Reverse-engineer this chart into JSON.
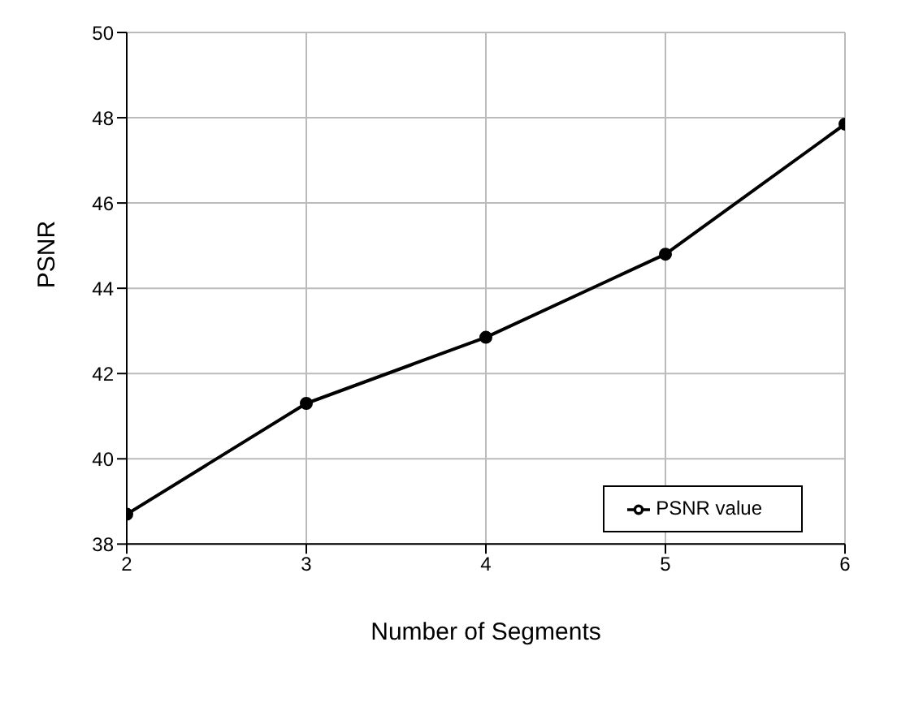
{
  "chart_data": {
    "type": "line",
    "xlabel": "Number of Segments",
    "ylabel": "PSNR",
    "x": [
      2,
      3,
      4,
      5,
      6
    ],
    "series": [
      {
        "name": "PSNR value",
        "color": "#000000",
        "values": [
          38.7,
          41.3,
          42.85,
          44.8,
          47.85
        ]
      }
    ],
    "xlim": [
      2,
      6
    ],
    "xticks": [
      2,
      3,
      4,
      5,
      6
    ],
    "ylim": [
      38,
      50
    ],
    "yticks": [
      38,
      40,
      42,
      44,
      46,
      48,
      50
    ],
    "grid": true,
    "legend": "bottom right",
    "marker": "circle",
    "line_style": "solid"
  }
}
